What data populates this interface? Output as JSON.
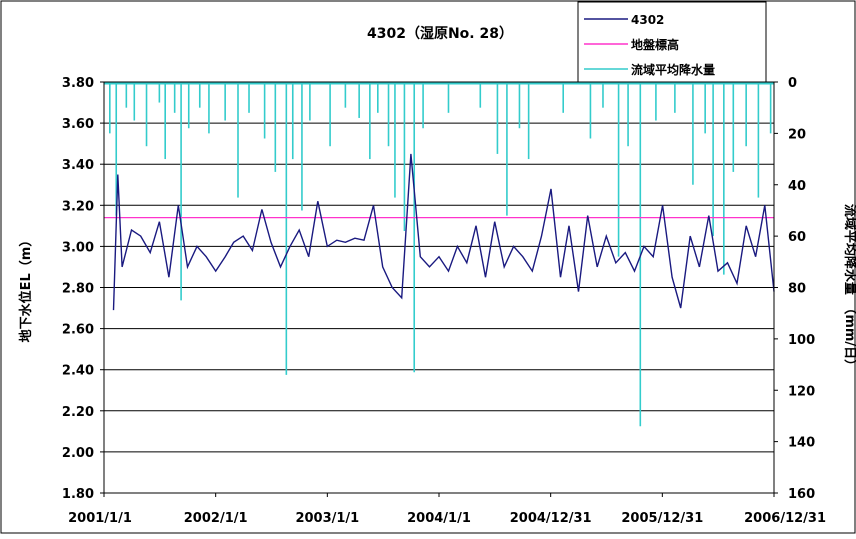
{
  "chart_data": {
    "type": "line",
    "title": "4302（湿原No. 28）",
    "ylabel_left": "地下水位EL（m）",
    "ylabel_right": "流域平均降水量　（mm/日）",
    "xlabel": "",
    "xlim": [
      "2001-01-01",
      "2006-12-31"
    ],
    "x_tick_labels": [
      "2001/1/1",
      "2002/1/1",
      "2003/1/1",
      "2004/1/1",
      "2004/12/31",
      "2005/12/31",
      "2006/12/31"
    ],
    "x_tick_dates": [
      "2001-01-01",
      "2002-01-01",
      "2003-01-01",
      "2004-01-01",
      "2004-12-31",
      "2005-12-31",
      "2006-12-31"
    ],
    "ylim_left": [
      1.8,
      3.8
    ],
    "y_ticks_left": [
      "1.80",
      "2.00",
      "2.20",
      "2.40",
      "2.60",
      "2.80",
      "3.00",
      "3.20",
      "3.40",
      "3.60",
      "3.80"
    ],
    "ylim_right": [
      0,
      160
    ],
    "y_ticks_right": [
      "0",
      "20",
      "40",
      "60",
      "80",
      "100",
      "120",
      "140",
      "160"
    ],
    "grid": "horizontal",
    "legend_position": "top-right",
    "series": [
      {
        "name": "4302",
        "axis": "left",
        "color": "#1a1a80",
        "points": [
          [
            "2001-01-01",
            null
          ],
          [
            "2001-02-01",
            2.69
          ],
          [
            "2001-02-15",
            3.35
          ],
          [
            "2001-03-01",
            2.9
          ],
          [
            "2001-04-01",
            3.08
          ],
          [
            "2001-05-01",
            3.05
          ],
          [
            "2001-06-01",
            2.97
          ],
          [
            "2001-07-01",
            3.12
          ],
          [
            "2001-08-01",
            2.85
          ],
          [
            "2001-09-01",
            3.2
          ],
          [
            "2001-10-01",
            2.9
          ],
          [
            "2001-11-01",
            3.0
          ],
          [
            "2001-12-01",
            2.95
          ],
          [
            "2002-01-01",
            2.88
          ],
          [
            "2002-02-01",
            2.95
          ],
          [
            "2002-03-01",
            3.02
          ],
          [
            "2002-04-01",
            3.05
          ],
          [
            "2002-05-01",
            2.98
          ],
          [
            "2002-06-01",
            3.18
          ],
          [
            "2002-07-01",
            3.02
          ],
          [
            "2002-08-01",
            2.9
          ],
          [
            "2002-09-01",
            3.0
          ],
          [
            "2002-10-01",
            3.08
          ],
          [
            "2002-11-01",
            2.95
          ],
          [
            "2002-12-01",
            3.22
          ],
          [
            "2003-01-01",
            3.0
          ],
          [
            "2003-02-01",
            3.03
          ],
          [
            "2003-03-01",
            3.02
          ],
          [
            "2003-04-01",
            3.04
          ],
          [
            "2003-05-01",
            3.03
          ],
          [
            "2003-06-01",
            3.2
          ],
          [
            "2003-07-01",
            2.9
          ],
          [
            "2003-08-01",
            2.8
          ],
          [
            "2003-09-01",
            2.75
          ],
          [
            "2003-10-01",
            3.45
          ],
          [
            "2003-11-01",
            2.95
          ],
          [
            "2003-12-01",
            2.9
          ],
          [
            "2004-01-01",
            2.95
          ],
          [
            "2004-02-01",
            2.88
          ],
          [
            "2004-03-01",
            3.0
          ],
          [
            "2004-04-01",
            2.92
          ],
          [
            "2004-05-01",
            3.1
          ],
          [
            "2004-06-01",
            2.85
          ],
          [
            "2004-07-01",
            3.12
          ],
          [
            "2004-08-01",
            2.9
          ],
          [
            "2004-09-01",
            3.0
          ],
          [
            "2004-10-01",
            2.95
          ],
          [
            "2004-11-01",
            2.88
          ],
          [
            "2004-12-01",
            3.05
          ],
          [
            "2005-01-01",
            3.28
          ],
          [
            "2005-02-01",
            2.85
          ],
          [
            "2005-03-01",
            3.1
          ],
          [
            "2005-04-01",
            2.78
          ],
          [
            "2005-05-01",
            3.15
          ],
          [
            "2005-06-01",
            2.9
          ],
          [
            "2005-07-01",
            3.05
          ],
          [
            "2005-08-01",
            2.92
          ],
          [
            "2005-09-01",
            2.97
          ],
          [
            "2005-10-01",
            2.88
          ],
          [
            "2005-11-01",
            3.0
          ],
          [
            "2005-12-01",
            2.95
          ],
          [
            "2006-01-01",
            3.2
          ],
          [
            "2006-02-01",
            2.85
          ],
          [
            "2006-03-01",
            2.7
          ],
          [
            "2006-04-01",
            3.05
          ],
          [
            "2006-05-01",
            2.9
          ],
          [
            "2006-06-01",
            3.15
          ],
          [
            "2006-07-01",
            2.88
          ],
          [
            "2006-08-01",
            2.92
          ],
          [
            "2006-09-01",
            2.82
          ],
          [
            "2006-10-01",
            3.1
          ],
          [
            "2006-11-01",
            2.95
          ],
          [
            "2006-12-01",
            3.2
          ],
          [
            "2006-12-31",
            2.78
          ]
        ]
      },
      {
        "name": "地盤標高",
        "axis": "left",
        "color": "#ff33cc",
        "points": [
          [
            "2001-01-01",
            3.14
          ],
          [
            "2006-12-31",
            3.14
          ]
        ]
      },
      {
        "name": "流域平均降水量",
        "axis": "right",
        "color": "#33cccc",
        "style": "downward-spikes",
        "points": [
          [
            "2001-01-20",
            20
          ],
          [
            "2001-02-10",
            52
          ],
          [
            "2001-03-15",
            10
          ],
          [
            "2001-04-10",
            15
          ],
          [
            "2001-05-20",
            25
          ],
          [
            "2001-07-01",
            8
          ],
          [
            "2001-07-20",
            30
          ],
          [
            "2001-08-20",
            12
          ],
          [
            "2001-09-10",
            85
          ],
          [
            "2001-10-05",
            18
          ],
          [
            "2001-11-10",
            10
          ],
          [
            "2001-12-10",
            20
          ],
          [
            "2002-02-01",
            15
          ],
          [
            "2002-03-15",
            45
          ],
          [
            "2002-04-20",
            12
          ],
          [
            "2002-06-10",
            22
          ],
          [
            "2002-07-15",
            35
          ],
          [
            "2002-08-20",
            114
          ],
          [
            "2002-09-10",
            30
          ],
          [
            "2002-10-10",
            50
          ],
          [
            "2002-11-05",
            15
          ],
          [
            "2003-01-10",
            25
          ],
          [
            "2003-03-01",
            10
          ],
          [
            "2003-04-15",
            14
          ],
          [
            "2003-05-20",
            30
          ],
          [
            "2003-06-15",
            12
          ],
          [
            "2003-07-20",
            25
          ],
          [
            "2003-08-10",
            45
          ],
          [
            "2003-09-10",
            58
          ],
          [
            "2003-10-12",
            113
          ],
          [
            "2003-11-10",
            18
          ],
          [
            "2004-02-01",
            12
          ],
          [
            "2004-05-15",
            10
          ],
          [
            "2004-07-10",
            28
          ],
          [
            "2004-08-10",
            52
          ],
          [
            "2004-09-20",
            18
          ],
          [
            "2004-10-20",
            30
          ],
          [
            "2005-02-10",
            12
          ],
          [
            "2005-05-10",
            22
          ],
          [
            "2005-06-20",
            10
          ],
          [
            "2005-08-10",
            68
          ],
          [
            "2005-09-10",
            25
          ],
          [
            "2005-10-20",
            134
          ],
          [
            "2005-12-10",
            15
          ],
          [
            "2006-02-10",
            12
          ],
          [
            "2006-04-10",
            40
          ],
          [
            "2006-05-20",
            20
          ],
          [
            "2006-06-15",
            60
          ],
          [
            "2006-07-20",
            75
          ],
          [
            "2006-08-20",
            35
          ],
          [
            "2006-10-01",
            25
          ],
          [
            "2006-11-10",
            45
          ],
          [
            "2006-12-20",
            20
          ]
        ]
      }
    ]
  },
  "colors": {
    "groundwater": "#1a1a80",
    "ground_elevation": "#ff33cc",
    "rainfall": "#33cccc",
    "grid": "#000000"
  }
}
